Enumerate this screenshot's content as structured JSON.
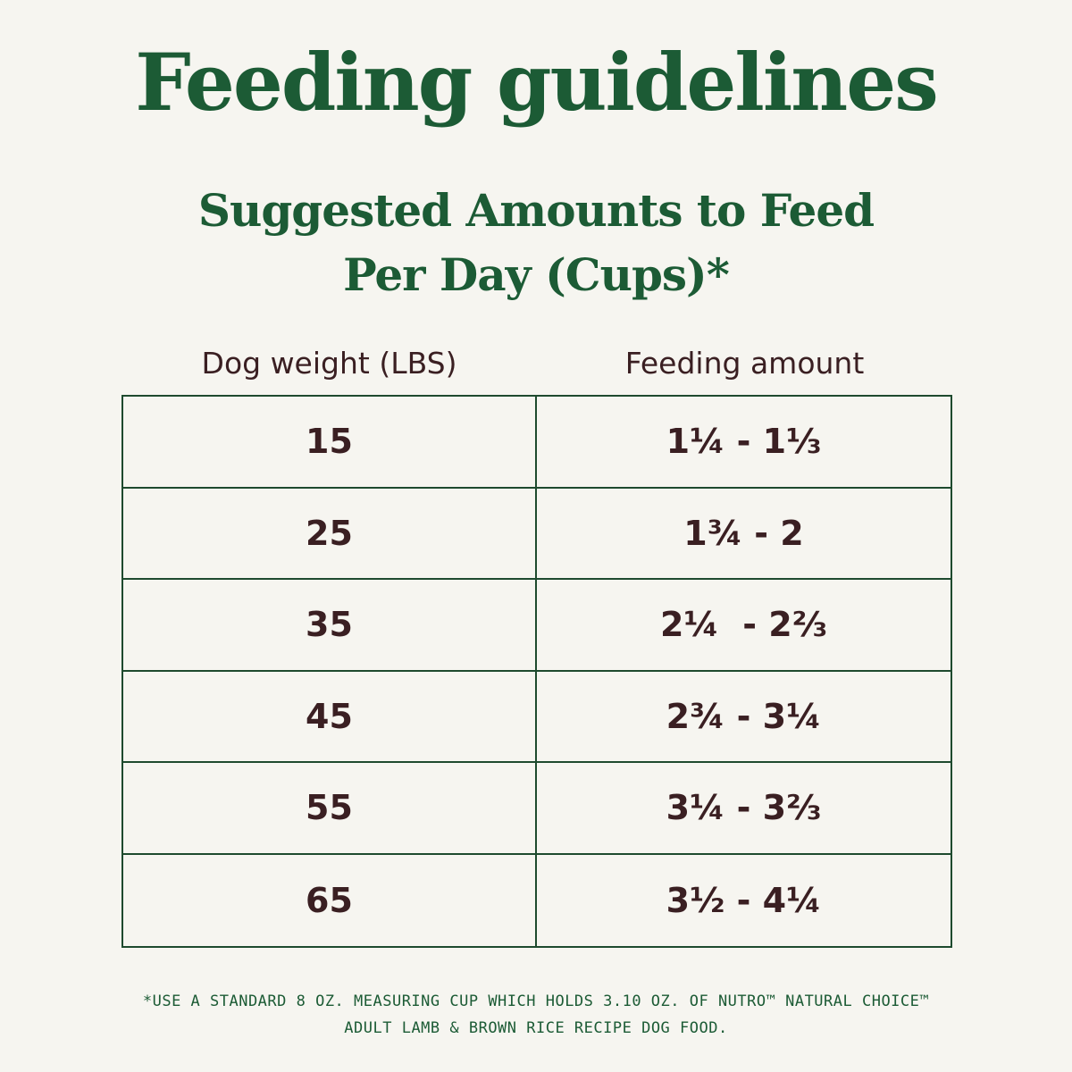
{
  "title": "Feeding guidelines",
  "subtitle": {
    "line1": "Suggested Amounts to Feed",
    "line2": "Per Day (Cups)*"
  },
  "table": {
    "headers": [
      "Dog weight (LBS)",
      "Feeding amount"
    ],
    "rows": [
      {
        "weight": "15",
        "amount": "1¼ - 1⅓"
      },
      {
        "weight": "25",
        "amount": "1¾ - 2"
      },
      {
        "weight": "35",
        "amount": "2¼  - 2⅔"
      },
      {
        "weight": "45",
        "amount": "2¾ - 3¼"
      },
      {
        "weight": "55",
        "amount": "3¼ - 3⅔"
      },
      {
        "weight": "65",
        "amount": "3½ - 4¼"
      }
    ]
  },
  "footnote": {
    "line1": "*USE A STANDARD 8 OZ. MEASURING CUP WHICH HOLDS 3.10 OZ. OF NUTRO™ NATURAL CHOICE™",
    "line2": "ADULT LAMB & BROWN RICE RECIPE DOG FOOD."
  },
  "colors": {
    "background": "#f6f5f0",
    "heading_green": "#1c5b35",
    "text_dark": "#3a1f22",
    "border": "#1e4a2e"
  }
}
